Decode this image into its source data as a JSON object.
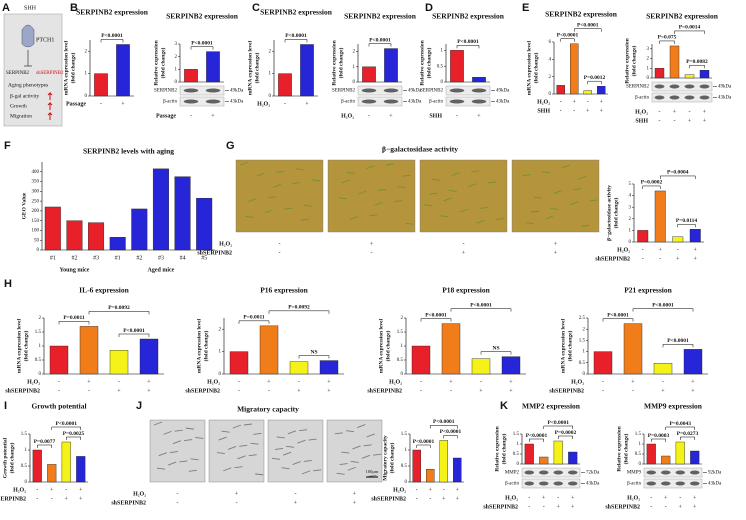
{
  "panel_labels": [
    "A",
    "B",
    "C",
    "D",
    "E",
    "F",
    "G",
    "H",
    "I",
    "J",
    "K"
  ],
  "diagram": {
    "nodes": [
      "SHH",
      "PTCH1",
      "SERPINB2",
      "shSERPINB2",
      "Aging phenotypes",
      "β-gal activity",
      "Growth",
      "Migration"
    ]
  },
  "chart_data": [
    {
      "type": "bar",
      "title": "SERPINB2 expression",
      "ylabel": [
        "mRNA expression level",
        "(fold change)"
      ],
      "values": [
        1,
        2.3
      ],
      "colors": [
        "#e8202a",
        "#2626d8"
      ],
      "ylim": [
        0,
        2.5
      ],
      "yticks": [
        0,
        1,
        2
      ],
      "annotations": [
        "P<0.0001"
      ],
      "conditions": [
        {
          "name": "Passage",
          "marks": [
            "-",
            "+"
          ]
        }
      ]
    },
    {
      "type": "bar",
      "title": "SERPINB2 expression",
      "ylabel": [
        "Relative expression",
        "(fold change)"
      ],
      "values": [
        1,
        2.4
      ],
      "colors": [
        "#e8202a",
        "#2626d8"
      ],
      "ylim": [
        0,
        3
      ],
      "yticks": [
        0,
        1,
        2,
        3
      ],
      "annotations": [
        "P<0.0001"
      ],
      "blot": {
        "bands": [
          "SERPINB2",
          "β-actin"
        ],
        "sizes": [
          "49kDa",
          "43kDa"
        ]
      },
      "conditions": [
        {
          "name": "Passage",
          "marks": [
            "-",
            "+"
          ]
        }
      ]
    },
    {
      "type": "bar",
      "title": "SERPINB2 expression",
      "ylabel": [
        "mRNA expression level",
        "(fold change)"
      ],
      "values": [
        1,
        2.3
      ],
      "colors": [
        "#e8202a",
        "#2626d8"
      ],
      "ylim": [
        0,
        2.5
      ],
      "yticks": [
        0,
        1,
        2
      ],
      "annotations": [
        "P<0.0001"
      ],
      "conditions": [
        {
          "name": "H₂O₂",
          "marks": [
            "-",
            "+"
          ]
        }
      ]
    },
    {
      "type": "bar",
      "title": "SERPINB2 expression",
      "ylabel": [
        "Relative expression",
        "(fold change)"
      ],
      "values": [
        1,
        2.2
      ],
      "colors": [
        "#e8202a",
        "#2626d8"
      ],
      "ylim": [
        0,
        2.5
      ],
      "yticks": [
        0,
        1,
        2
      ],
      "annotations": [
        "P<0.0001"
      ],
      "blot": {
        "bands": [
          "SERPINB2",
          "β-actin"
        ],
        "sizes": [
          "49kDa",
          "43kDa"
        ]
      },
      "conditions": [
        {
          "name": "H₂O₂",
          "marks": [
            "-",
            "+"
          ]
        }
      ]
    },
    {
      "type": "bar",
      "title": "SERPINB2 expression",
      "ylabel": [
        "Relative expression",
        "(fold change)"
      ],
      "values": [
        1,
        0.15
      ],
      "colors": [
        "#e8202a",
        "#2626d8"
      ],
      "ylim": [
        0,
        1.2
      ],
      "yticks": [
        0,
        0.5,
        1
      ],
      "annotations": [
        "P<0.0001"
      ],
      "blot": {
        "bands": [
          "SERPINB2",
          "β-actin"
        ],
        "sizes": [
          "49kDa",
          "43kDa"
        ]
      },
      "conditions": [
        {
          "name": "SHH",
          "marks": [
            "-",
            "+"
          ]
        }
      ]
    },
    {
      "type": "bar",
      "title": "SERPINB2 expression",
      "ylabel": [
        "mRNA expression level",
        "(fold change)"
      ],
      "values": [
        1,
        5.8,
        0.4,
        0.9
      ],
      "colors": [
        "#e8202a",
        "#f07d1a",
        "#f5f21a",
        "#2626d8"
      ],
      "ylim": [
        0,
        6
      ],
      "yticks": [
        0,
        2,
        4,
        6
      ],
      "annotations": [
        "P<0.0001",
        "P<0.0001",
        "P=0.0012"
      ],
      "conditions": [
        {
          "name": "H₂O₂",
          "marks": [
            "-",
            "+",
            "-",
            "+"
          ]
        },
        {
          "name": "SHH",
          "marks": [
            "-",
            "-",
            "+",
            "+"
          ]
        }
      ]
    },
    {
      "type": "bar",
      "title": "SERPINB2 expression",
      "ylabel": [
        "Relative expression",
        "(fold change)"
      ],
      "values": [
        1,
        3.3,
        0.35,
        0.8
      ],
      "colors": [
        "#e8202a",
        "#f07d1a",
        "#f5f21a",
        "#2626d8"
      ],
      "ylim": [
        0,
        3.5
      ],
      "yticks": [
        0,
        1,
        2,
        3
      ],
      "annotations": [
        "P=0.075",
        "P=0.0014",
        "P=0.0082"
      ],
      "blot": {
        "bands": [
          "SERPINB2",
          "β-actin"
        ],
        "sizes": [
          "49kDa",
          "43kDa"
        ]
      },
      "conditions": [
        {
          "name": "H₂O₂",
          "marks": [
            "-",
            "+",
            "-",
            "+"
          ]
        },
        {
          "name": "SHH",
          "marks": [
            "-",
            "-",
            "+",
            "+"
          ]
        }
      ]
    },
    {
      "type": "bar",
      "title": "SERPINB2 levels with aging",
      "ylabel": [
        "GEO Value"
      ],
      "categories": [
        "#1",
        "#2",
        "#3",
        "#1",
        "#2",
        "#3",
        "#4",
        "#5"
      ],
      "groups": [
        "Young mice",
        "Aged mice"
      ],
      "values": [
        220,
        150,
        140,
        65,
        210,
        415,
        375,
        265
      ],
      "colors": [
        "#e8202a",
        "#e8202a",
        "#e8202a",
        "#2626d8",
        "#2626d8",
        "#2626d8",
        "#2626d8",
        "#2626d8"
      ],
      "ylim": [
        0,
        450
      ],
      "yticks": [
        0,
        50,
        100,
        150,
        200,
        250,
        300,
        350,
        400
      ]
    },
    {
      "type": "bar",
      "title": "β−galactosidase activity",
      "ylabel": [
        "β−galactosidase activity",
        "(fold change)"
      ],
      "values": [
        1,
        4.4,
        0.45,
        1.1
      ],
      "colors": [
        "#e8202a",
        "#f07d1a",
        "#f5f21a",
        "#2626d8"
      ],
      "ylim": [
        0,
        5
      ],
      "yticks": [
        0,
        1,
        2,
        3,
        4,
        5
      ],
      "annotations": [
        "P=0.0002",
        "P=0.0004",
        "P=0.0114"
      ],
      "conditions": [
        {
          "name": "H₂O₂",
          "marks": [
            "-",
            "+",
            "-",
            "+"
          ]
        },
        {
          "name": "shSERPINB2",
          "marks": [
            "-",
            "-",
            "+",
            "+"
          ]
        }
      ],
      "image_conditions": [
        {
          "name": "H₂O₂",
          "marks": [
            "-",
            "+",
            "-",
            "+"
          ]
        },
        {
          "name": "shSERPINB2",
          "marks": [
            "-",
            "-",
            "+",
            "+"
          ]
        }
      ]
    },
    {
      "type": "bar",
      "title": "IL-6 expression",
      "ylabel": [
        "mRNA expression level",
        "(fold change)"
      ],
      "values": [
        1,
        1.7,
        0.85,
        1.25
      ],
      "colors": [
        "#e8202a",
        "#f07d1a",
        "#f5f21a",
        "#2626d8"
      ],
      "ylim": [
        0,
        2
      ],
      "yticks": [
        0,
        0.5,
        1,
        1.5,
        2
      ],
      "annotations": [
        "P=0.0011",
        "P=0.0092",
        "P<0.0001"
      ],
      "conditions": [
        {
          "name": "H₂O₂",
          "marks": [
            "-",
            "+",
            "-",
            "+"
          ]
        },
        {
          "name": "shSERPINB2",
          "marks": [
            "-",
            "-",
            "+",
            "+"
          ]
        }
      ]
    },
    {
      "type": "bar",
      "title": "P16 expression",
      "ylabel": [
        "mRNA expression level",
        "(fold change)"
      ],
      "values": [
        1,
        2.15,
        0.55,
        0.6
      ],
      "colors": [
        "#e8202a",
        "#f07d1a",
        "#f5f21a",
        "#2626d8"
      ],
      "ylim": [
        0,
        2.5
      ],
      "yticks": [
        0,
        1,
        2
      ],
      "annotations": [
        "P=0.0011",
        "P=0.0092",
        "NS"
      ],
      "conditions": [
        {
          "name": "H₂O₂",
          "marks": [
            "-",
            "+",
            "-",
            "+"
          ]
        },
        {
          "name": "shSERPINB2",
          "marks": [
            "-",
            "-",
            "+",
            "+"
          ]
        }
      ]
    },
    {
      "type": "bar",
      "title": "P18 expression",
      "ylabel": [
        "mRNA expression level",
        "(fold change)"
      ],
      "values": [
        1,
        1.8,
        0.55,
        0.62
      ],
      "colors": [
        "#e8202a",
        "#f07d1a",
        "#f5f21a",
        "#2626d8"
      ],
      "ylim": [
        0,
        2
      ],
      "yticks": [
        0,
        0.5,
        1,
        1.5,
        2
      ],
      "annotations": [
        "P<0.0001",
        "P<0.0001",
        "NS"
      ],
      "conditions": [
        {
          "name": "H₂O₂",
          "marks": [
            "-",
            "+",
            "-",
            "+"
          ]
        },
        {
          "name": "shSERPINB2",
          "marks": [
            "-",
            "-",
            "+",
            "+"
          ]
        }
      ]
    },
    {
      "type": "bar",
      "title": "P21 expression",
      "ylabel": [
        "mRNA expression level",
        "(fold change)"
      ],
      "values": [
        1,
        2.25,
        0.48,
        1.1
      ],
      "colors": [
        "#e8202a",
        "#f07d1a",
        "#f5f21a",
        "#2626d8"
      ],
      "ylim": [
        0,
        2.5
      ],
      "yticks": [
        0,
        0.5,
        1,
        1.5,
        2,
        2.5
      ],
      "annotations": [
        "P<0.0001",
        "P<0.0001",
        "P<0.0001"
      ],
      "conditions": [
        {
          "name": "H₂O₂",
          "marks": [
            "-",
            "+",
            "-",
            "+"
          ]
        },
        {
          "name": "shSERPINB2",
          "marks": [
            "-",
            "-",
            "+",
            "+"
          ]
        }
      ]
    },
    {
      "type": "bar",
      "title": "Growth potential",
      "ylabel": [
        "Growth potential",
        "(fold change)"
      ],
      "values": [
        1,
        0.55,
        1.25,
        0.8
      ],
      "colors": [
        "#e8202a",
        "#f07d1a",
        "#f5f21a",
        "#2626d8"
      ],
      "ylim": [
        0,
        1.5
      ],
      "yticks": [
        0,
        0.5,
        1,
        1.5
      ],
      "annotations": [
        "P=0.0077",
        "P<0.0001",
        "P=0.0025"
      ],
      "conditions": [
        {
          "name": "H₂O₂",
          "marks": [
            "-",
            "+",
            "-",
            "+"
          ]
        },
        {
          "name": "shSERPINB2",
          "marks": [
            "-",
            "-",
            "+",
            "+"
          ]
        }
      ]
    },
    {
      "type": "bar",
      "title": "Migratory capacity",
      "ylabel": [
        "Migratory capacity",
        "(fold change)"
      ],
      "values": [
        1,
        0.4,
        1.3,
        0.75
      ],
      "colors": [
        "#e8202a",
        "#f07d1a",
        "#f5f21a",
        "#2626d8"
      ],
      "ylim": [
        0,
        1.5
      ],
      "yticks": [
        0,
        0.5,
        1,
        1.5
      ],
      "annotations": [
        "P<0.0001",
        "P<0.0001",
        "P<0.0001"
      ],
      "conditions": [
        {
          "name": "H₂O₂",
          "marks": [
            "-",
            "+",
            "-",
            "+"
          ]
        },
        {
          "name": "shSERPINB2",
          "marks": [
            "-",
            "-",
            "+",
            "+"
          ]
        }
      ],
      "image_conditions": [
        {
          "name": "H₂O₂",
          "marks": [
            "-",
            "+",
            "-",
            "+"
          ]
        },
        {
          "name": "shSERPINB2",
          "marks": [
            "-",
            "-",
            "+",
            "+"
          ]
        }
      ],
      "scale_bar": "100μm"
    },
    {
      "type": "bar",
      "title": "MMP2 expression",
      "ylabel": [
        "Relative expression",
        "(fold change)"
      ],
      "values": [
        1,
        0.35,
        1.15,
        0.6
      ],
      "colors": [
        "#e8202a",
        "#f07d1a",
        "#f5f21a",
        "#2626d8"
      ],
      "ylim": [
        0,
        1.5
      ],
      "yticks": [
        0,
        0.5,
        1,
        1.5
      ],
      "annotations": [
        "P<0.0001",
        "P<0.0001",
        "P=0.0002"
      ],
      "blot": {
        "bands": [
          "MMP2",
          "β-actin"
        ],
        "sizes": [
          "72kDa",
          "43kDa"
        ]
      },
      "conditions": [
        {
          "name": "H₂O₂",
          "marks": [
            "-",
            "+",
            "-",
            "+"
          ]
        },
        {
          "name": "shSERPINB2",
          "marks": [
            "-",
            "-",
            "+",
            "+"
          ]
        }
      ]
    },
    {
      "type": "bar",
      "title": "MMP9 expression",
      "ylabel": [
        "Relative expression",
        "(fold change)"
      ],
      "values": [
        1,
        0.4,
        1.1,
        0.65
      ],
      "colors": [
        "#e8202a",
        "#f07d1a",
        "#f5f21a",
        "#2626d8"
      ],
      "ylim": [
        0,
        1.5
      ],
      "yticks": [
        0,
        0.5,
        1,
        1.5
      ],
      "annotations": [
        "P=0.0003",
        "P=0.0043",
        "P=0.0273"
      ],
      "blot": {
        "bands": [
          "MMP9",
          "β-actin"
        ],
        "sizes": [
          "92kDa",
          "43kDa"
        ]
      },
      "conditions": [
        {
          "name": "H₂O₂",
          "marks": [
            "-",
            "+",
            "-",
            "+"
          ]
        },
        {
          "name": "shSERPINB2",
          "marks": [
            "-",
            "-",
            "+",
            "+"
          ]
        }
      ]
    }
  ]
}
